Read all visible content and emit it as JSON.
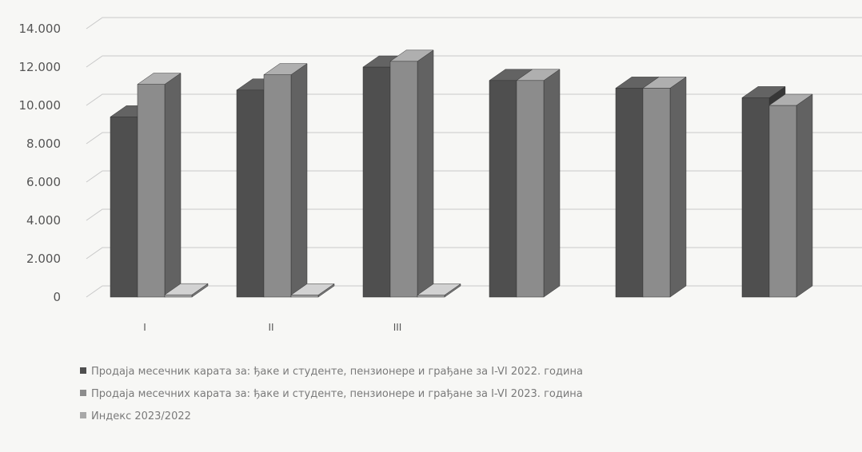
{
  "chart_data": {
    "type": "bar",
    "categories": [
      "I",
      "II",
      "III",
      "",
      "",
      ""
    ],
    "series": [
      {
        "name": "Продаја месечник карата за: ђаке и студенте,  пензионере и  грађане за I-VI 2022. година",
        "values": [
          9400,
          10800,
          12000,
          11300,
          10900,
          10400
        ],
        "color": "#4f4f4f"
      },
      {
        "name": "Продаја месечних карата за: ђаке и студенте,  пензионере и  грађане за I-VI 2023. година",
        "values": [
          11100,
          11600,
          12300,
          11300,
          10900,
          10000
        ],
        "color": "#8c8c8c"
      },
      {
        "name": "Индекс 2023/2022",
        "values": [
          118,
          107,
          103,
          null,
          null,
          null
        ],
        "color": "#a8a8a8"
      }
    ],
    "y_ticks": [
      "0",
      "2.000",
      "4.000",
      "6.000",
      "8.000",
      "10.000",
      "12.000",
      "14.000"
    ],
    "ylim": [
      0,
      14000
    ],
    "grid": true,
    "legend_position": "bottom"
  }
}
